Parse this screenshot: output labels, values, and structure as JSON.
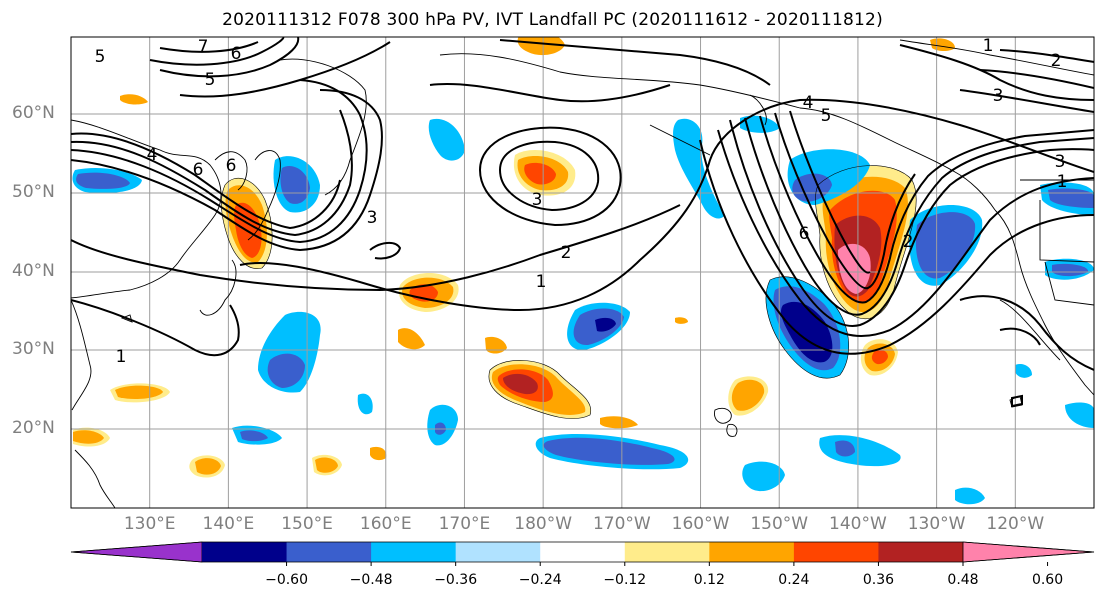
{
  "title": "2020111312 F078 300 hPa PV, IVT Landfall PC (2020111612 - 2020111812)",
  "map": {
    "lat_labels": [
      "60°N",
      "50°N",
      "40°N",
      "30°N",
      "20°N"
    ],
    "lat_values": [
      60,
      50,
      40,
      30,
      20
    ],
    "lon_labels": [
      "130°E",
      "140°E",
      "150°E",
      "160°E",
      "170°E",
      "180°W",
      "170°W",
      "160°W",
      "150°W",
      "140°W",
      "130°W",
      "120°W"
    ],
    "lon_values": [
      130,
      140,
      150,
      160,
      170,
      180,
      190,
      200,
      210,
      220,
      230,
      240
    ],
    "lon_range": [
      120,
      250
    ],
    "lat_range": [
      10,
      70
    ],
    "contour_labels": [
      "5",
      "7",
      "6",
      "5",
      "4",
      "6",
      "3",
      "3",
      "2",
      "1",
      "1",
      "5",
      "4",
      "6",
      "2",
      "3",
      "3",
      "1",
      "2",
      "1",
      "6"
    ]
  },
  "colorbar": {
    "ticks": [
      "−0.60",
      "−0.48",
      "−0.36",
      "−0.24",
      "−0.12",
      "0.12",
      "0.24",
      "0.36",
      "0.48",
      "0.60"
    ],
    "colors": [
      "#9932cc",
      "#00008b",
      "#3a5fcd",
      "#00bfff",
      "#b0e2ff",
      "#ffffff",
      "#ffec8b",
      "#ffa500",
      "#ff4500",
      "#b22222",
      "#ff82ab"
    ]
  }
}
